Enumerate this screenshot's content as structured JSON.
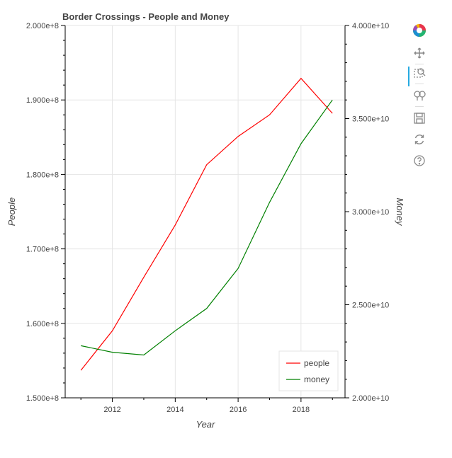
{
  "chart_data": {
    "type": "line",
    "title": "Border Crossings - People and Money",
    "xlabel": "Year",
    "ylabel": "People",
    "y2label": "Money",
    "x": [
      2011,
      2012,
      2013,
      2014,
      2015,
      2016,
      2017,
      2018,
      2019
    ],
    "xlim": [
      2010.5,
      2019.4
    ],
    "ylim": [
      150000000,
      200000000
    ],
    "y2lim": [
      20000000000,
      40000000000
    ],
    "x_ticks": [
      2012,
      2014,
      2016,
      2018
    ],
    "x_tick_labels": [
      "2012",
      "2014",
      "2016",
      "2018"
    ],
    "y_ticks": [
      150000000,
      160000000,
      170000000,
      180000000,
      190000000,
      200000000
    ],
    "y_tick_labels": [
      "1.500e+8",
      "1.600e+8",
      "1.700e+8",
      "1.800e+8",
      "1.900e+8",
      "2.000e+8"
    ],
    "y2_ticks": [
      20000000000,
      25000000000,
      30000000000,
      35000000000,
      40000000000
    ],
    "y2_tick_labels": [
      "2.000e+10",
      "2.500e+10",
      "3.000e+10",
      "3.500e+10",
      "4.000e+10"
    ],
    "grid": true,
    "legend_position": "bottom-right",
    "series": [
      {
        "name": "people",
        "axis": "left",
        "color": "#ff0000",
        "values": [
          153700000,
          159000000,
          166200000,
          173200000,
          181300000,
          185100000,
          188000000,
          192900000,
          188200000
        ]
      },
      {
        "name": "money",
        "axis": "right",
        "color": "#008000",
        "values": [
          22800000000,
          22450000000,
          22300000000,
          23600000000,
          24800000000,
          26950000000,
          30500000000,
          33650000000,
          36000000000
        ]
      }
    ]
  },
  "toolbar": {
    "tools": [
      {
        "name": "bokeh-logo-icon",
        "icon": "logo"
      },
      {
        "name": "pan-tool-icon",
        "icon": "pan"
      },
      {
        "name": "box-zoom-tool-icon",
        "icon": "box-zoom"
      },
      {
        "name": "wheel-zoom-tool-icon",
        "icon": "wheel-zoom"
      },
      {
        "name": "save-tool-icon",
        "icon": "save"
      },
      {
        "name": "reset-tool-icon",
        "icon": "reset"
      },
      {
        "name": "help-tool-icon",
        "icon": "help"
      }
    ]
  }
}
